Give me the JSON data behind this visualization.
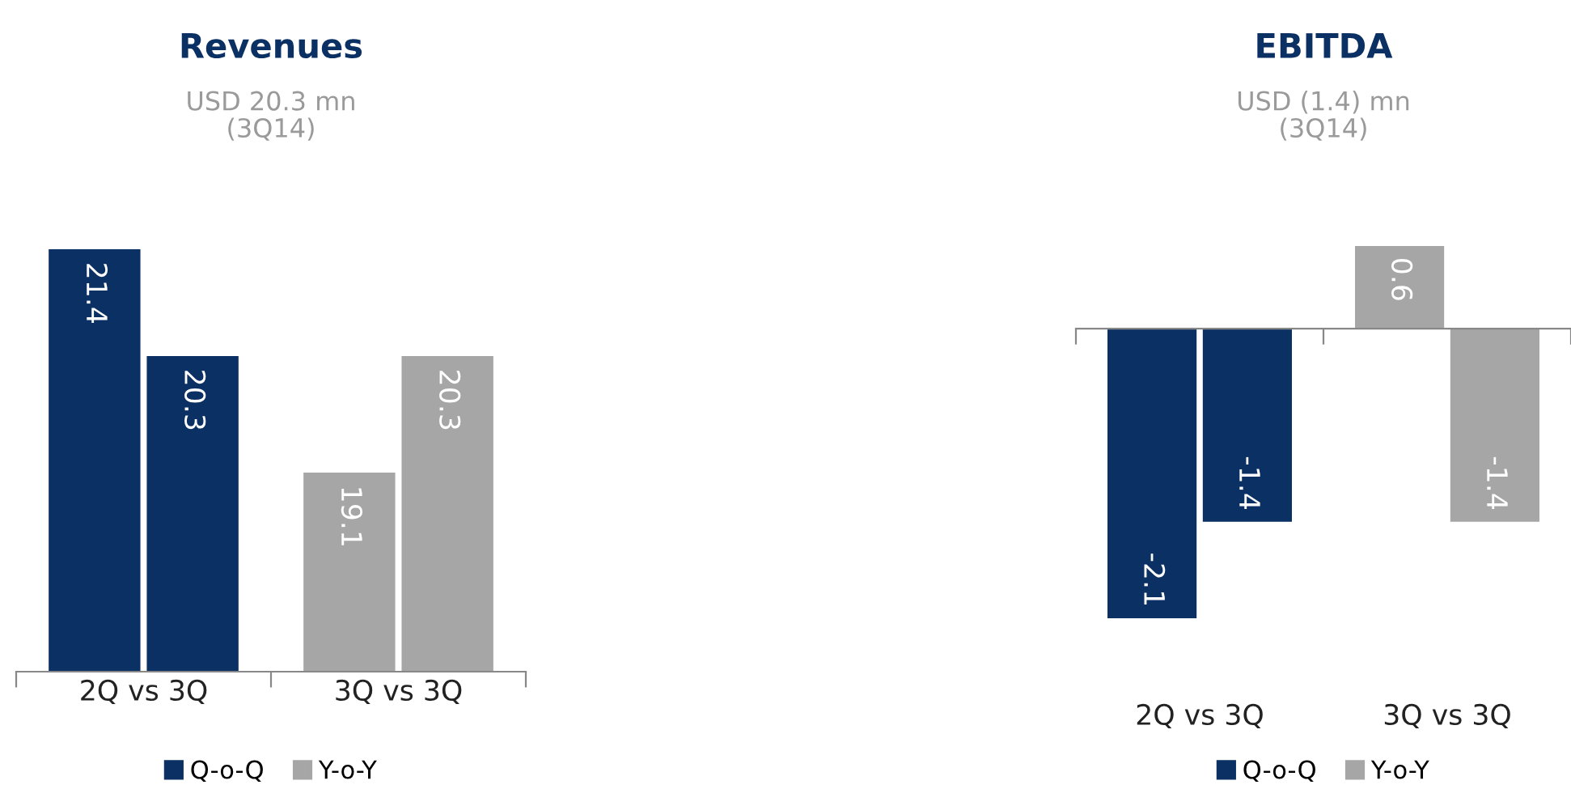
{
  "chart_data": [
    {
      "type": "bar",
      "title": "Revenues",
      "subtitle": "USD 20.3 mn\n(3Q14)",
      "categories": [
        "2Q vs 3Q",
        "3Q vs 3Q"
      ],
      "series": [
        {
          "name": "Q-o-Q",
          "color": "#0b3063",
          "colors": [
            "#0b3063",
            "#a6a6a6"
          ],
          "values": [
            21.4,
            19.1
          ]
        },
        {
          "name": "Y-o-Y",
          "color": "#a6a6a6",
          "colors": [
            "#0b3063",
            "#a6a6a6"
          ],
          "values": [
            20.3,
            20.3
          ]
        }
      ],
      "ylim": [
        17.05,
        21.4
      ],
      "data_labels": true,
      "tick_labels": "x",
      "legend": "bottom",
      "grid": false
    },
    {
      "type": "bar",
      "title": "EBITDA",
      "subtitle": "USD (1.4) mn\n(3Q14)",
      "categories": [
        "2Q vs 3Q",
        "3Q vs 3Q"
      ],
      "series": [
        {
          "name": "Q-o-Q",
          "color": "#0b3063",
          "colors": [
            "#0b3063",
            "#a6a6a6"
          ],
          "values": [
            -2.1,
            0.6
          ]
        },
        {
          "name": "Y-o-Y",
          "color": "#a6a6a6",
          "colors": [
            "#0b3063",
            "#a6a6a6"
          ],
          "values": [
            -1.4,
            -1.4
          ]
        }
      ],
      "ylim": [
        -2.1,
        0.6
      ],
      "data_labels": true,
      "tick_labels": "x",
      "legend": "bottom",
      "grid": false
    }
  ]
}
